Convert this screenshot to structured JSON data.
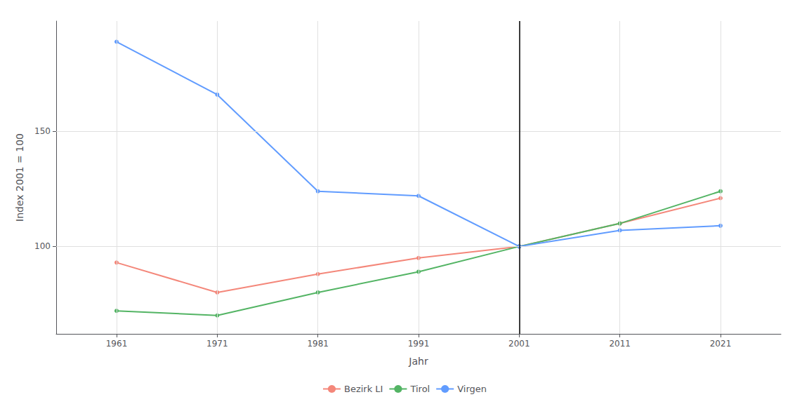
{
  "chart_data": {
    "type": "line",
    "x": [
      1961,
      1971,
      1981,
      1991,
      2001,
      2011,
      2021
    ],
    "series": [
      {
        "name": "Bezirk LI",
        "color": "#F4877A",
        "values": [
          93,
          80,
          88,
          95,
          100,
          110,
          121
        ]
      },
      {
        "name": "Tirol",
        "color": "#53B464",
        "values": [
          72,
          70,
          80,
          89,
          100,
          110,
          124
        ]
      },
      {
        "name": "Virgen",
        "color": "#619CFF",
        "values": [
          189,
          166,
          124,
          122,
          100,
          107,
          109
        ]
      }
    ],
    "xlabel": "Jahr",
    "ylabel": "Index 2001 = 100",
    "vline": 2001,
    "xlim": [
      1955,
      2027
    ],
    "ylim": [
      62,
      198
    ],
    "xticks": [
      1961,
      1971,
      1981,
      1991,
      2001,
      2011,
      2021
    ],
    "yticks": [
      100,
      150
    ],
    "grid": true,
    "legend": "bottom",
    "marker": "circle"
  }
}
